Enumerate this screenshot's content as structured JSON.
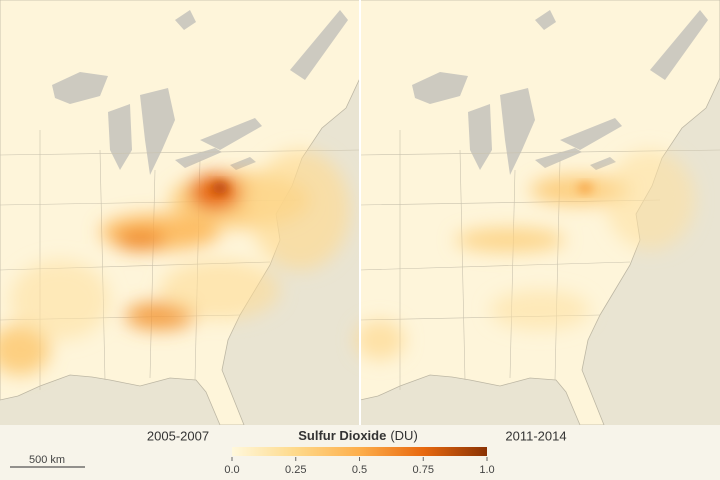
{
  "panels": [
    {
      "label": "2005-2007"
    },
    {
      "label": "2011-2014"
    }
  ],
  "colorbar": {
    "title": "Sulfur Dioxide",
    "unit": "(DU)",
    "lim": [
      0,
      1
    ],
    "ticks": [
      {
        "value": 0,
        "label": "0.0"
      },
      0.25,
      0.5,
      0.75,
      {
        "value": 1,
        "label": "1.0"
      }
    ]
  },
  "scale_bar": {
    "label": "500 km"
  }
}
